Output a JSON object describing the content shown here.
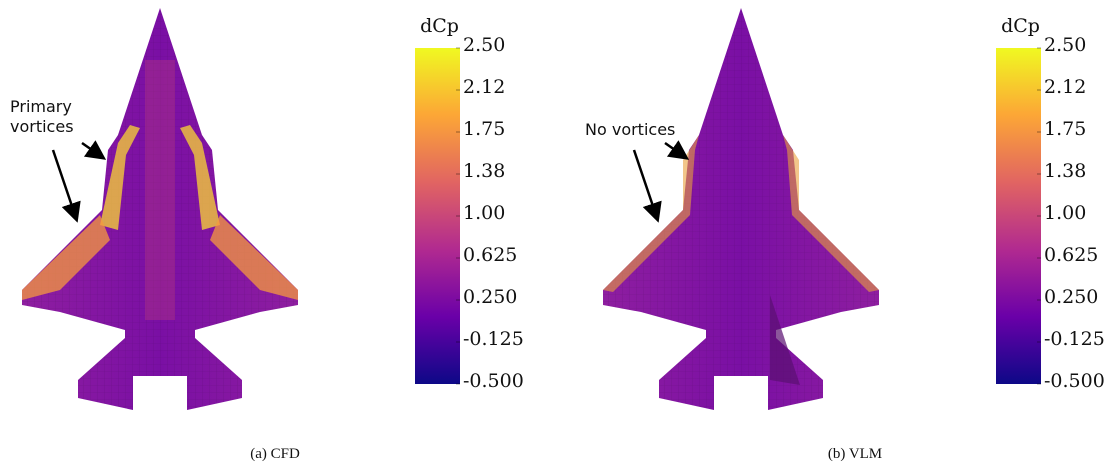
{
  "panels": [
    {
      "caption": "(a) CFD",
      "annotation": [
        "Primary",
        "vortices"
      ],
      "colorbar": {
        "title": "dCp",
        "ticks": [
          {
            "value": 2.5,
            "label": "2.50"
          },
          {
            "value": 2.125,
            "label": "2.12"
          },
          {
            "value": 1.75,
            "label": "1.75"
          },
          {
            "value": 1.375,
            "label": "1.38"
          },
          {
            "value": 1.0,
            "label": "1.00"
          },
          {
            "value": 0.625,
            "label": "0.625"
          },
          {
            "value": 0.25,
            "label": "0.250"
          },
          {
            "value": -0.125,
            "label": "-0.125"
          },
          {
            "value": -0.5,
            "label": "-0.500"
          }
        ]
      }
    },
    {
      "caption": "(b) VLM",
      "annotation": [
        "No vortices"
      ],
      "colorbar": {
        "title": "dCp",
        "ticks": [
          {
            "value": 2.5,
            "label": "2.50"
          },
          {
            "value": 2.125,
            "label": "2.12"
          },
          {
            "value": 1.75,
            "label": "1.75"
          },
          {
            "value": 1.375,
            "label": "1.38"
          },
          {
            "value": 1.0,
            "label": "1.00"
          },
          {
            "value": 0.625,
            "label": "0.625"
          },
          {
            "value": 0.25,
            "label": "0.250"
          },
          {
            "value": -0.125,
            "label": "-0.125"
          },
          {
            "value": -0.5,
            "label": "-0.500"
          }
        ]
      }
    }
  ]
}
